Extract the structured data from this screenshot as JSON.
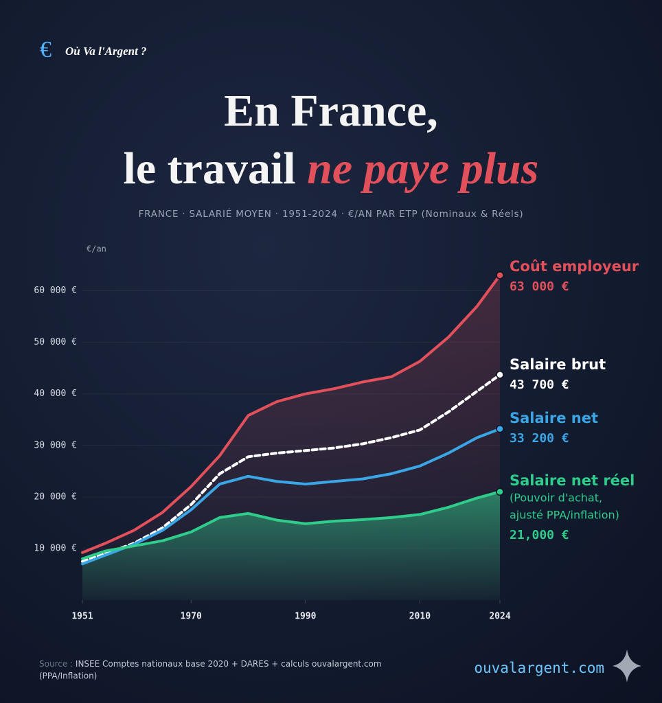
{
  "brand": {
    "logo": "€",
    "name": "Où Va l'Argent ?"
  },
  "chart_data": {
    "type": "line",
    "title": {
      "line1": "En France,",
      "line2": "le travail",
      "emphasis": "ne paye plus"
    },
    "subtitle": "FRANCE · SALARIÉ MOYEN · 1951-2024 · €/AN PAR ETP (Nominaux & Réels)",
    "y_label": "€/an",
    "x": [
      1951,
      1955,
      1960,
      1965,
      1970,
      1975,
      1980,
      1985,
      1990,
      1995,
      2000,
      2005,
      2010,
      2015,
      2020,
      2024
    ],
    "xlim": [
      1951,
      2024
    ],
    "xticks": [
      1951,
      1970,
      1990,
      2010,
      2024
    ],
    "ylim": [
      0,
      67000
    ],
    "yticks": [
      {
        "value": 10000,
        "label": "10 000 €"
      },
      {
        "value": 20000,
        "label": "20 000 €"
      },
      {
        "value": 30000,
        "label": "30 000 €"
      },
      {
        "value": 40000,
        "label": "40 000 €"
      },
      {
        "value": 50000,
        "label": "50 000 €"
      },
      {
        "value": 60000,
        "label": "60 000 €"
      }
    ],
    "grid": true,
    "series": [
      {
        "name": "Coût employeur",
        "color": "#e2515b",
        "values": [
          9200,
          11000,
          13500,
          17000,
          22000,
          28000,
          35800,
          38500,
          40000,
          41000,
          42300,
          43300,
          46300,
          51000,
          57000,
          63000
        ],
        "value_labels": [
          null,
          null,
          null,
          null,
          null,
          null,
          null,
          null,
          null,
          null,
          null,
          null,
          null,
          null,
          null,
          "63 000 €"
        ]
      },
      {
        "name": "Salaire brut",
        "color": "#ffffff",
        "dashed": true,
        "values": [
          7500,
          9000,
          11000,
          14000,
          18500,
          24500,
          27800,
          28500,
          29000,
          29500,
          30300,
          31500,
          33000,
          36500,
          40500,
          43700
        ],
        "value_labels": [
          null,
          null,
          null,
          null,
          null,
          null,
          null,
          null,
          null,
          null,
          null,
          null,
          null,
          null,
          null,
          "43 700 €"
        ]
      },
      {
        "name": "Salaire net",
        "color": "#3aa6e6",
        "values": [
          7000,
          8700,
          10800,
          13500,
          17500,
          22500,
          24000,
          23000,
          22500,
          23000,
          23500,
          24500,
          26000,
          28500,
          31500,
          33200
        ],
        "value_labels": [
          null,
          null,
          null,
          null,
          null,
          null,
          null,
          null,
          null,
          null,
          null,
          null,
          null,
          null,
          null,
          "33 200 €"
        ]
      },
      {
        "name": "Salaire net réel",
        "color": "#2fcc8b",
        "filled": true,
        "note": [
          "(Pouvoir d'achat,",
          "ajusté PPA/inflation)"
        ],
        "values": [
          8000,
          9500,
          10500,
          11500,
          13200,
          16000,
          16800,
          15500,
          14800,
          15300,
          15600,
          16000,
          16600,
          18000,
          19800,
          21000
        ],
        "value_labels": [
          null,
          null,
          null,
          null,
          null,
          null,
          null,
          null,
          null,
          null,
          null,
          null,
          null,
          null,
          null,
          "21,000 €"
        ]
      }
    ]
  },
  "footer": {
    "source_label": "Source :",
    "source_line1": "INSEE Comptes nationaux base 2020 + DARES + calculs ouvalargent.com",
    "source_line2": "(PPA/Inflation)",
    "site": "ouvalargent.com"
  }
}
